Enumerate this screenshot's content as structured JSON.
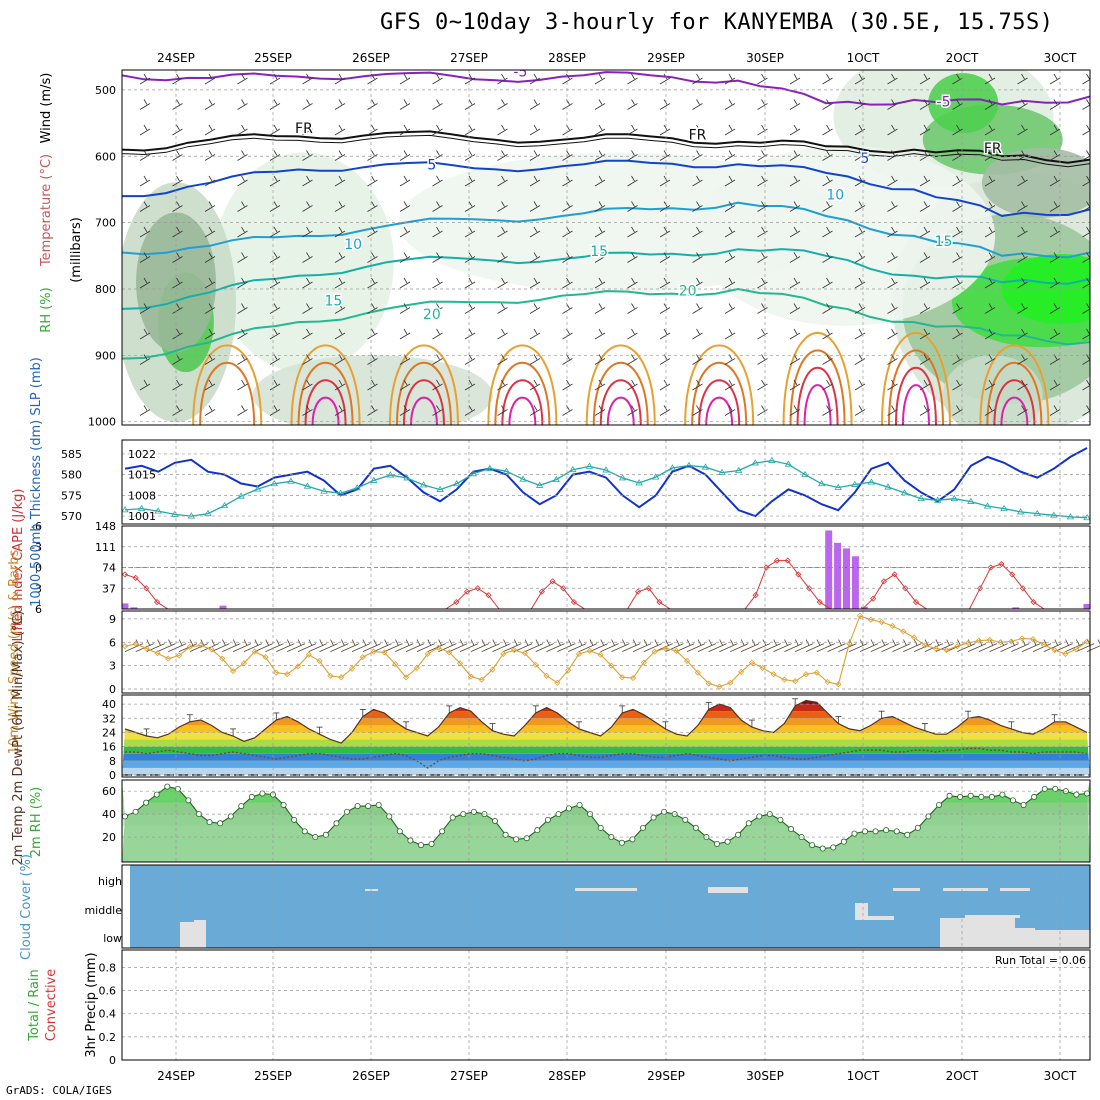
{
  "title": "GFS 0~10day 3-hourly for KANYEMBA (30.5E, 15.75S)",
  "credit": "GrADS: COLA/IGES",
  "colors": {
    "rh_green": "#33cc33",
    "rh_dark": "#8a9a8a",
    "temp_purple": "#8800aa",
    "slp_blue": "#1133cc",
    "thick_cyan": "#22aaaa",
    "lifted_red": "#dd3333",
    "cape_violet": "#bb66ee",
    "wind_orange": "#e0a030",
    "cloud_blue": "#6aaad6",
    "rh2m_green": "#44bb44"
  },
  "chart_data": [
    {
      "type": "heatmap",
      "panel": "upper-air",
      "x": [
        "24SEP",
        "25SEP",
        "26SEP",
        "27SEP",
        "28SEP",
        "29SEP",
        "30SEP",
        "1OCT",
        "2OCT",
        "3OCT"
      ],
      "x_top_labels": [
        "24SEP",
        "25SEP",
        "26SEP",
        "27SEP",
        "28SEP",
        "29SEP",
        "30SEP",
        "1OCT",
        "2OCT",
        "3OCT"
      ],
      "yticks": [
        500,
        600,
        700,
        800,
        900,
        1000
      ],
      "ylabel": "(millibars)",
      "side_labels": [
        "RH (%)",
        "Temperature (°C)",
        "Wind (m/s)"
      ],
      "contour_labels": [
        {
          "text": "-5",
          "series": "temp",
          "day": 3.5,
          "p": 480
        },
        {
          "text": "-5",
          "series": "temp",
          "day": 7.8,
          "p": 525
        },
        {
          "text": "FR",
          "series": "freezing",
          "day": 1.3,
          "p": 565
        },
        {
          "text": "FR",
          "series": "freezing",
          "day": 5.3,
          "p": 575
        },
        {
          "text": "FR",
          "series": "freezing",
          "day": 8.3,
          "p": 595
        },
        {
          "text": "5",
          "series": "temp",
          "day": 2.6,
          "p": 620
        },
        {
          "text": "5",
          "series": "temp",
          "day": 7.0,
          "p": 610
        },
        {
          "text": "10",
          "series": "temp",
          "day": 1.8,
          "p": 740
        },
        {
          "text": "10",
          "series": "temp",
          "day": 6.7,
          "p": 665
        },
        {
          "text": "15",
          "series": "temp",
          "day": 1.6,
          "p": 825
        },
        {
          "text": "15",
          "series": "temp",
          "day": 4.3,
          "p": 750
        },
        {
          "text": "15",
          "series": "temp",
          "day": 7.8,
          "p": 735
        },
        {
          "text": "20",
          "series": "temp",
          "day": 2.6,
          "p": 845
        },
        {
          "text": "20",
          "series": "temp",
          "day": 5.2,
          "p": 810
        }
      ],
      "isotherms": [
        {
          "name": "-5",
          "p": [
            478,
            482,
            480,
            476,
            484,
            480,
            478,
            486,
            520,
            515,
            522,
            510
          ]
        },
        {
          "name": "FR",
          "p": [
            590,
            575,
            570,
            565,
            572,
            575,
            570,
            578,
            585,
            590,
            600,
            605
          ]
        },
        {
          "name": "5",
          "p": [
            660,
            640,
            620,
            612,
            618,
            615,
            610,
            612,
            625,
            650,
            690,
            680
          ]
        },
        {
          "name": "10",
          "p": [
            745,
            735,
            720,
            705,
            695,
            690,
            680,
            670,
            690,
            720,
            750,
            745
          ]
        },
        {
          "name": "15",
          "p": [
            830,
            805,
            780,
            760,
            755,
            755,
            748,
            740,
            750,
            780,
            790,
            785
          ]
        },
        {
          "name": "20",
          "p": [
            905,
            880,
            850,
            830,
            820,
            810,
            808,
            800,
            825,
            850,
            870,
            880
          ]
        }
      ]
    },
    {
      "type": "line",
      "panel": "slp-thickness",
      "yticks_left": [
        570,
        575,
        580,
        585
      ],
      "yticks_right": [
        1001,
        1008,
        1015,
        1022
      ],
      "ylabel": "1000-500mb Thickness (dm)  SLP (mb)",
      "series": [
        {
          "name": "SLP",
          "values": [
            1017,
            1018,
            1016,
            1019,
            1020,
            1016,
            1015,
            1012,
            1011,
            1014,
            1015,
            1016,
            1013,
            1008,
            1010,
            1017,
            1018,
            1014,
            1009,
            1006,
            1010,
            1016,
            1017,
            1015,
            1009,
            1005,
            1008,
            1015,
            1016,
            1014,
            1008,
            1004,
            1008,
            1016,
            1018,
            1015,
            1009,
            1003,
            1001,
            1006,
            1010,
            1008,
            1005,
            1003,
            1009,
            1017,
            1019,
            1013,
            1009,
            1006,
            1010,
            1018,
            1021,
            1019,
            1016,
            1014,
            1017,
            1021,
            1024
          ]
        },
        {
          "name": "Thickness",
          "values": [
            571.5,
            571.8,
            571.2,
            570.4,
            570.0,
            570.6,
            572.5,
            574.8,
            576.5,
            577.8,
            578.4,
            577.2,
            576.0,
            575.5,
            576.8,
            578.6,
            579.9,
            579.2,
            577.5,
            576.4,
            577.8,
            580.2,
            581.5,
            580.8,
            578.9,
            577.4,
            578.8,
            581.2,
            582.0,
            581.1,
            579.2,
            578.0,
            579.4,
            581.6,
            582.2,
            581.8,
            580.5,
            581.0,
            582.8,
            583.4,
            582.5,
            580.0,
            577.8,
            576.9,
            577.6,
            578.2,
            577.0,
            575.6,
            574.2,
            573.8,
            574.2,
            573.5,
            572.4,
            571.8,
            571.0,
            570.6,
            570.2,
            569.8,
            569.6
          ]
        }
      ]
    },
    {
      "type": "bar",
      "panel": "cape-lifted-index",
      "yticks_left": [
        6,
        3,
        0,
        -3,
        -6
      ],
      "yticks_right": [
        37,
        74,
        111,
        148
      ],
      "ylabel": "Lifted Index  CAPE (J/kg)",
      "series": [
        {
          "name": "Lifted Index",
          "values": [
            1,
            1.5,
            3,
            5,
            6,
            6,
            6,
            6,
            6,
            6,
            6,
            6,
            6,
            6,
            6,
            6,
            6,
            6,
            6,
            6,
            6,
            6,
            6,
            6,
            6,
            6,
            6,
            6,
            6,
            6,
            6,
            5,
            3.5,
            3,
            4,
            6,
            6,
            6,
            6,
            3.5,
            2,
            3,
            5,
            6,
            6,
            6,
            6,
            6,
            3.5,
            3,
            5,
            6,
            6,
            6,
            6,
            6,
            6,
            6,
            6,
            4,
            0,
            -1,
            -1,
            1,
            3,
            5,
            6,
            6,
            6,
            6,
            4.5,
            2,
            1,
            3,
            5,
            6,
            6,
            6,
            6,
            6,
            3,
            0,
            -0.5,
            1,
            3,
            5,
            6,
            6,
            6,
            6,
            6
          ]
        },
        {
          "name": "CAPE",
          "values": [
            10,
            3,
            0,
            0,
            0,
            0,
            0,
            0,
            0,
            0,
            0,
            6,
            0,
            0,
            0,
            0,
            0,
            0,
            0,
            0,
            0,
            0,
            0,
            0,
            0,
            0,
            0,
            0,
            0,
            0,
            0,
            0,
            0,
            0,
            0,
            0,
            0,
            0,
            0,
            0,
            0,
            0,
            0,
            0,
            0,
            0,
            0,
            0,
            0,
            0,
            0,
            0,
            0,
            0,
            0,
            0,
            0,
            0,
            0,
            0,
            0,
            0,
            0,
            0,
            0,
            0,
            0,
            0,
            0,
            0,
            0,
            0,
            0,
            0,
            0,
            0,
            0,
            0,
            0,
            140,
            118,
            108,
            94,
            4,
            0,
            0,
            0,
            0,
            0,
            0,
            0,
            0,
            0,
            0,
            0,
            0,
            0,
            0,
            0,
            0,
            3,
            0,
            0,
            0,
            0,
            0,
            0,
            0,
            9
          ]
        }
      ]
    },
    {
      "type": "line",
      "panel": "wind-10m",
      "yticks": [
        0,
        3,
        6,
        9
      ],
      "ylabel": "10m Wind Speed (m/s) & Barbs",
      "series": [
        {
          "name": "Speed",
          "values": [
            5.5,
            5.8,
            5.2,
            4.6,
            3.9,
            4.3,
            5.4,
            5.6,
            5.1,
            3.9,
            2.3,
            3.3,
            4.8,
            4.1,
            2.1,
            1.9,
            2.9,
            4.4,
            3.6,
            1.7,
            1.5,
            2.6,
            4.1,
            4.8,
            4.7,
            3.2,
            1.5,
            2.7,
            4.5,
            5.3,
            4.7,
            3.3,
            1.6,
            1.2,
            2.5,
            4.5,
            5.0,
            4.6,
            3.1,
            1.7,
            0.8,
            2.4,
            4.5,
            4.9,
            4.4,
            3.0,
            1.5,
            1.4,
            3.4,
            4.8,
            5.2,
            4.9,
            3.6,
            2.1,
            0.7,
            0.3,
            0.8,
            2.2,
            3.4,
            2.7,
            1.9,
            1.2,
            1.0,
            1.9,
            2.1,
            0.9,
            0.6,
            5.8,
            9.4,
            8.9,
            8.6,
            8.1,
            7.4,
            6.6,
            5.6,
            5.2,
            5.0,
            5.5,
            5.9,
            6.2,
            6.3,
            6.0,
            6.1,
            6.5,
            6.4,
            5.7,
            5.0,
            4.5,
            5.1,
            6.1
          ]
        }
      ]
    },
    {
      "type": "area",
      "panel": "temp-2m",
      "yticks": [
        0,
        8,
        16,
        24,
        32,
        40
      ],
      "ylabel": "2m Temp  2m DewPt (6hr Min/Max) (°C)",
      "series": [
        {
          "name": "Temp",
          "values": [
            26,
            24,
            22,
            21,
            23,
            27,
            30,
            31,
            28,
            24,
            22,
            19,
            21,
            26,
            31,
            33,
            30,
            26,
            23,
            20,
            18,
            24,
            33,
            37,
            35,
            30,
            26,
            24,
            22,
            27,
            35,
            38,
            36,
            30,
            25,
            23,
            22,
            28,
            35,
            38,
            35,
            30,
            26,
            24,
            22,
            27,
            35,
            37,
            34,
            30,
            26,
            23,
            22,
            28,
            37,
            40,
            38,
            31,
            27,
            25,
            24,
            29,
            39,
            42,
            41,
            35,
            29,
            26,
            25,
            28,
            32,
            33,
            30,
            27,
            25,
            23,
            23,
            27,
            32,
            33,
            31,
            28,
            26,
            24,
            23,
            26,
            30,
            30,
            27,
            24
          ]
        },
        {
          "name": "DewPt",
          "values": [
            13,
            13,
            12,
            13,
            14,
            13,
            12,
            11,
            11,
            12,
            13,
            12,
            11,
            10,
            9,
            10,
            11,
            12,
            12,
            11,
            10,
            9,
            9,
            10,
            11,
            12,
            11,
            8,
            4,
            8,
            10,
            11,
            12,
            12,
            11,
            10,
            9,
            8,
            9,
            11,
            12,
            12,
            11,
            10,
            10,
            11,
            12,
            12,
            11,
            10,
            10,
            11,
            12,
            11,
            10,
            9,
            8,
            9,
            10,
            11,
            11,
            10,
            9,
            9,
            10,
            11,
            12,
            13,
            14,
            14,
            14,
            13,
            13,
            14,
            14,
            13,
            14,
            14,
            15,
            15,
            14,
            14,
            13,
            13,
            12,
            13,
            13,
            13,
            13,
            12
          ]
        }
      ]
    },
    {
      "type": "area",
      "panel": "rh-2m",
      "yticks": [
        20,
        40,
        60
      ],
      "ylabel": "2m RH (%)",
      "series": [
        {
          "name": "RH",
          "values": [
            38,
            42,
            50,
            57,
            64,
            62,
            52,
            40,
            33,
            32,
            38,
            47,
            55,
            58,
            57,
            48,
            35,
            25,
            20,
            22,
            32,
            42,
            47,
            47,
            48,
            38,
            25,
            17,
            13,
            14,
            25,
            37,
            40,
            42,
            40,
            34,
            22,
            18,
            19,
            26,
            35,
            40,
            45,
            48,
            40,
            28,
            20,
            15,
            18,
            28,
            37,
            42,
            40,
            35,
            28,
            20,
            14,
            16,
            22,
            32,
            38,
            40,
            35,
            27,
            20,
            13,
            10,
            11,
            16,
            23,
            25,
            25,
            26,
            25,
            22,
            28,
            38,
            48,
            56,
            55,
            56,
            55,
            55,
            57,
            52,
            48,
            55,
            62,
            62,
            60,
            57,
            58
          ]
        }
      ]
    },
    {
      "type": "heatmap",
      "panel": "cloud-cover",
      "yticks": [
        "high",
        "middle",
        "low"
      ],
      "ylabel": "Cloud Cover (%)"
    },
    {
      "type": "bar",
      "panel": "precip-3hr",
      "yticks": [
        0,
        0.2,
        0.4,
        0.6,
        0.8
      ],
      "ylabel": "3hr Precip (mm)",
      "side_labels": [
        "Total / Rain",
        "Convective"
      ],
      "run_total": "Run Total = 0.06",
      "x_bottom_labels": [
        "24SEP",
        "25SEP",
        "26SEP",
        "27SEP",
        "28SEP",
        "29SEP",
        "30SEP",
        "1OCT",
        "2OCT",
        "3OCT"
      ],
      "values": []
    }
  ]
}
